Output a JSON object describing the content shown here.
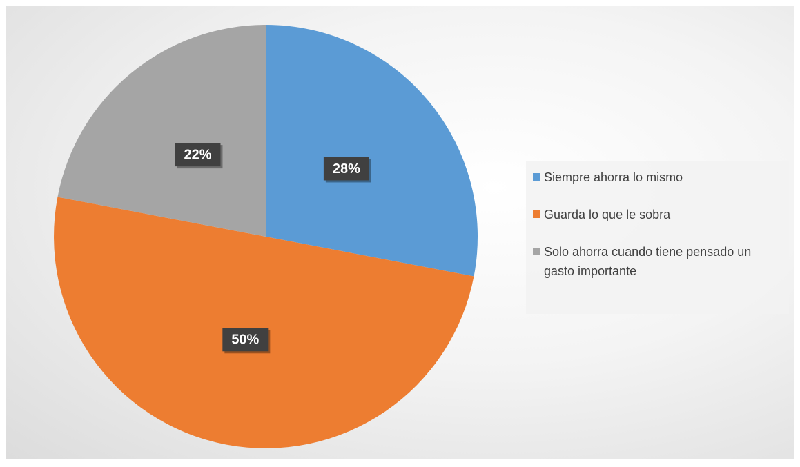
{
  "chart_data": {
    "type": "pie",
    "categories": [
      "Siempre ahorra lo mismo",
      "Guarda lo que le sobra",
      "Solo ahorra cuando tiene pensado un gasto importante"
    ],
    "values": [
      28,
      50,
      22
    ],
    "value_labels": [
      "28%",
      "50%",
      "22%"
    ],
    "colors": [
      "#5b9bd5",
      "#ed7d31",
      "#a5a5a5"
    ],
    "legend": "right"
  }
}
